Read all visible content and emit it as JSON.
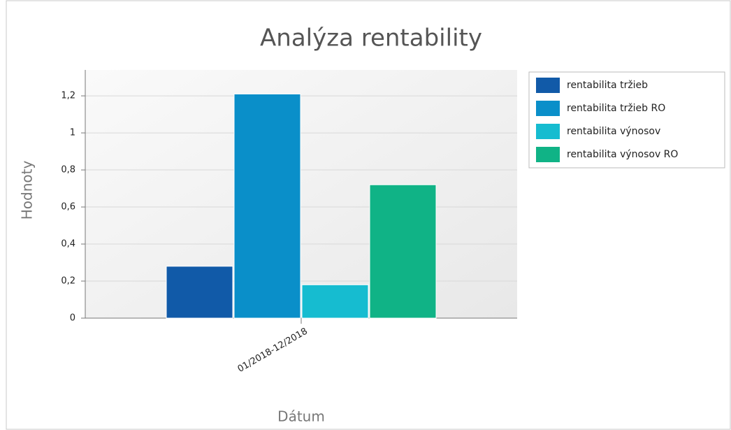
{
  "chart_data": {
    "type": "bar",
    "title": "Analýza rentability",
    "x_label": "Dátum",
    "y_label": "Hodnoty",
    "categories": [
      "01/2018-12/2018"
    ],
    "series": [
      {
        "name": "rentabilita tržieb",
        "color": "#115aa8",
        "values": [
          0.28
        ]
      },
      {
        "name": "rentabilita tržieb RO",
        "color": "#0a8fc9",
        "values": [
          1.21
        ]
      },
      {
        "name": "rentabilita výnosov",
        "color": "#16bcd0",
        "values": [
          0.18
        ]
      },
      {
        "name": "rentabilita výnosov RO",
        "color": "#10b386",
        "values": [
          0.72
        ]
      }
    ],
    "ylim": [
      0,
      1.34
    ],
    "yticks": [
      0,
      {
        "value": 0.2,
        "label": "0,2"
      },
      {
        "value": 0.4,
        "label": "0,4"
      },
      {
        "value": 0.6,
        "label": "0,6"
      },
      {
        "value": 0.8,
        "label": "0,8"
      },
      1,
      {
        "value": 1.2,
        "label": "1,2"
      }
    ],
    "grid": true,
    "legend": "right"
  }
}
